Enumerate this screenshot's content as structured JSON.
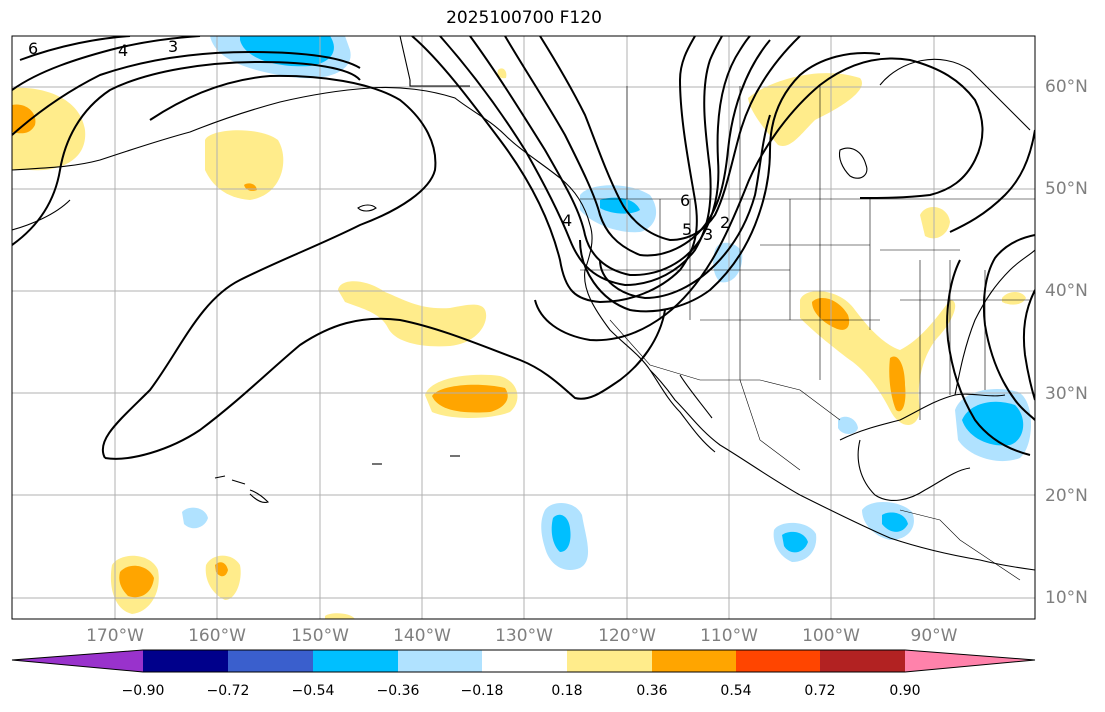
{
  "title": "2025100700 F120",
  "lat_labels": [
    "60°N",
    "50°N",
    "40°N",
    "30°N",
    "20°N",
    "10°N"
  ],
  "lon_labels": [
    "170°W",
    "160°W",
    "150°W",
    "140°W",
    "130°W",
    "120°W",
    "110°W",
    "100°W",
    "90°W"
  ],
  "contour_labels": [
    "6",
    "4",
    "3",
    "4",
    "5",
    "3",
    "2",
    "6"
  ],
  "colorbar": {
    "colors": [
      "#9932cc",
      "#00008b",
      "#3a5fcd",
      "#00bfff",
      "#b0e2ff",
      "#ffffff",
      "#ffec8b",
      "#ffa500",
      "#ff4500",
      "#b22222",
      "#ff82ab"
    ],
    "tick_labels": [
      "−0.90",
      "−0.72",
      "−0.54",
      "−0.36",
      "−0.18",
      "0.18",
      "0.36",
      "0.54",
      "0.72",
      "0.90"
    ]
  }
}
